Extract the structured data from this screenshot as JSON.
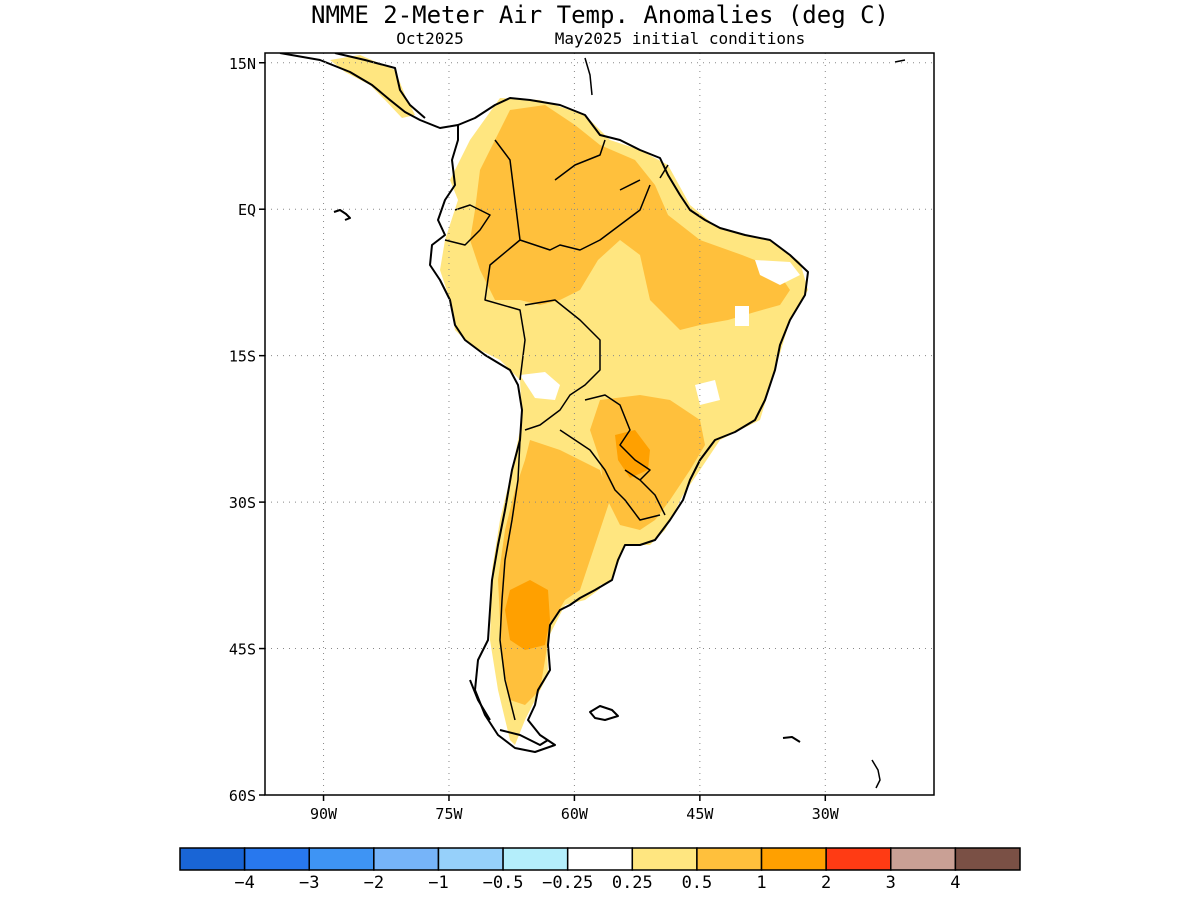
{
  "header": {
    "title": "NMME 2-Meter Air Temp. Anomalies (deg C)",
    "target_month": "Oct2025",
    "initial_conditions": "May2025 initial conditions"
  },
  "map": {
    "region": "South America",
    "lon_range": [
      -97,
      -17
    ],
    "lat_range": [
      -60,
      16
    ],
    "lat_ticks": [
      {
        "value": 15,
        "label": "15N"
      },
      {
        "value": 0,
        "label": "EQ"
      },
      {
        "value": -15,
        "label": "15S"
      },
      {
        "value": -30,
        "label": "30S"
      },
      {
        "value": -45,
        "label": "45S"
      },
      {
        "value": -60,
        "label": "60S"
      }
    ],
    "lon_ticks": [
      {
        "value": -90,
        "label": "90W"
      },
      {
        "value": -75,
        "label": "75W"
      },
      {
        "value": -60,
        "label": "60W"
      },
      {
        "value": -45,
        "label": "45W"
      },
      {
        "value": -30,
        "label": "30W"
      }
    ],
    "grid": "dotted",
    "coastline_color": "#000000",
    "dominant_anomaly": "0.5 to 2 (warm) over most of continent"
  },
  "colorbar": {
    "colors": [
      "#1965d6",
      "#2878ee",
      "#3e94f4",
      "#76b4f9",
      "#96d0fa",
      "#b4eefb",
      "#ffffff",
      "#ffe680",
      "#ffc03c",
      "#ffa000",
      "#ff3b14",
      "#c9a095",
      "#7a5045"
    ],
    "labels": [
      "-4",
      "-3",
      "-2",
      "-1",
      "-0.5",
      "-0.25",
      "0.25",
      "0.5",
      "1",
      "2",
      "3",
      "4"
    ]
  }
}
